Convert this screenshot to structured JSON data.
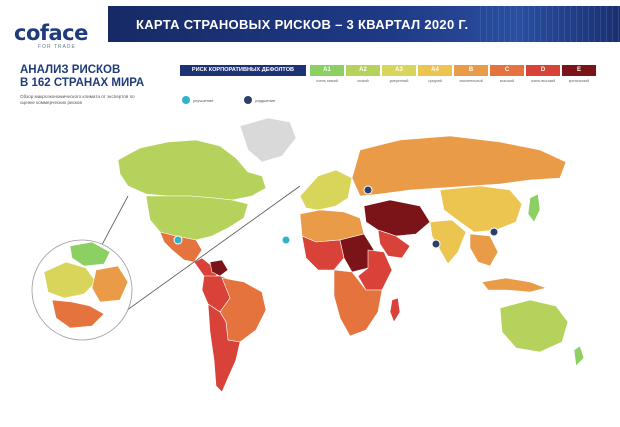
{
  "brand": {
    "logo_text": "coface",
    "tagline": "FOR TRADE"
  },
  "banner": {
    "title": "КАРТА СТРАНОВЫХ РИСКОВ – 3 КВАРТАЛ 2020 Г."
  },
  "intro": {
    "headline_line1": "АНАЛИЗ РИСКОВ",
    "headline_line2": "В 162 СТРАНАХ МИРА",
    "description": "Обзор макроэкономического климата от экспертов по оценке коммерческих рисков"
  },
  "legend": {
    "title": "РИСК КОРПОРАТИВНЫХ ДЕФОЛТОВ",
    "grades": [
      {
        "code": "A1",
        "label": "очень низкий",
        "color": "#8ccf63"
      },
      {
        "code": "A2",
        "label": "низкий",
        "color": "#b5d35c"
      },
      {
        "code": "A3",
        "label": "умеренный",
        "color": "#d8d55a"
      },
      {
        "code": "A4",
        "label": "средний",
        "color": "#ecc450"
      },
      {
        "code": "B",
        "label": "значительный",
        "color": "#e99b48"
      },
      {
        "code": "C",
        "label": "высокий",
        "color": "#e5733e"
      },
      {
        "code": "D",
        "label": "очень высокий",
        "color": "#d84238"
      },
      {
        "code": "E",
        "label": "критический",
        "color": "#7a1418"
      }
    ],
    "trend_up": {
      "label": "улучшение",
      "color": "#2fb3c6"
    },
    "trend_down": {
      "label": "ухудшение",
      "color": "#2c3e6b"
    }
  },
  "map_colors": {
    "ocean": "#ffffff",
    "north_america_canada": "#b5d35c",
    "usa": "#b5d35c",
    "mexico": "#e5733e",
    "central_america": "#d84238",
    "south_america_north": "#d84238",
    "brazil": "#e5733e",
    "argentina": "#d84238",
    "greenland": "#d9d9d9",
    "russia": "#e99b48",
    "europe": "#d8d55a",
    "north_africa": "#e99b48",
    "west_africa": "#d84238",
    "central_africa": "#7a1418",
    "east_africa": "#d84238",
    "southern_africa": "#e5733e",
    "middle_east": "#7a1418",
    "india": "#ecc450",
    "china": "#ecc450",
    "southeast_asia": "#e99b48",
    "australia": "#b5d35c",
    "japan": "#8ccf63"
  }
}
